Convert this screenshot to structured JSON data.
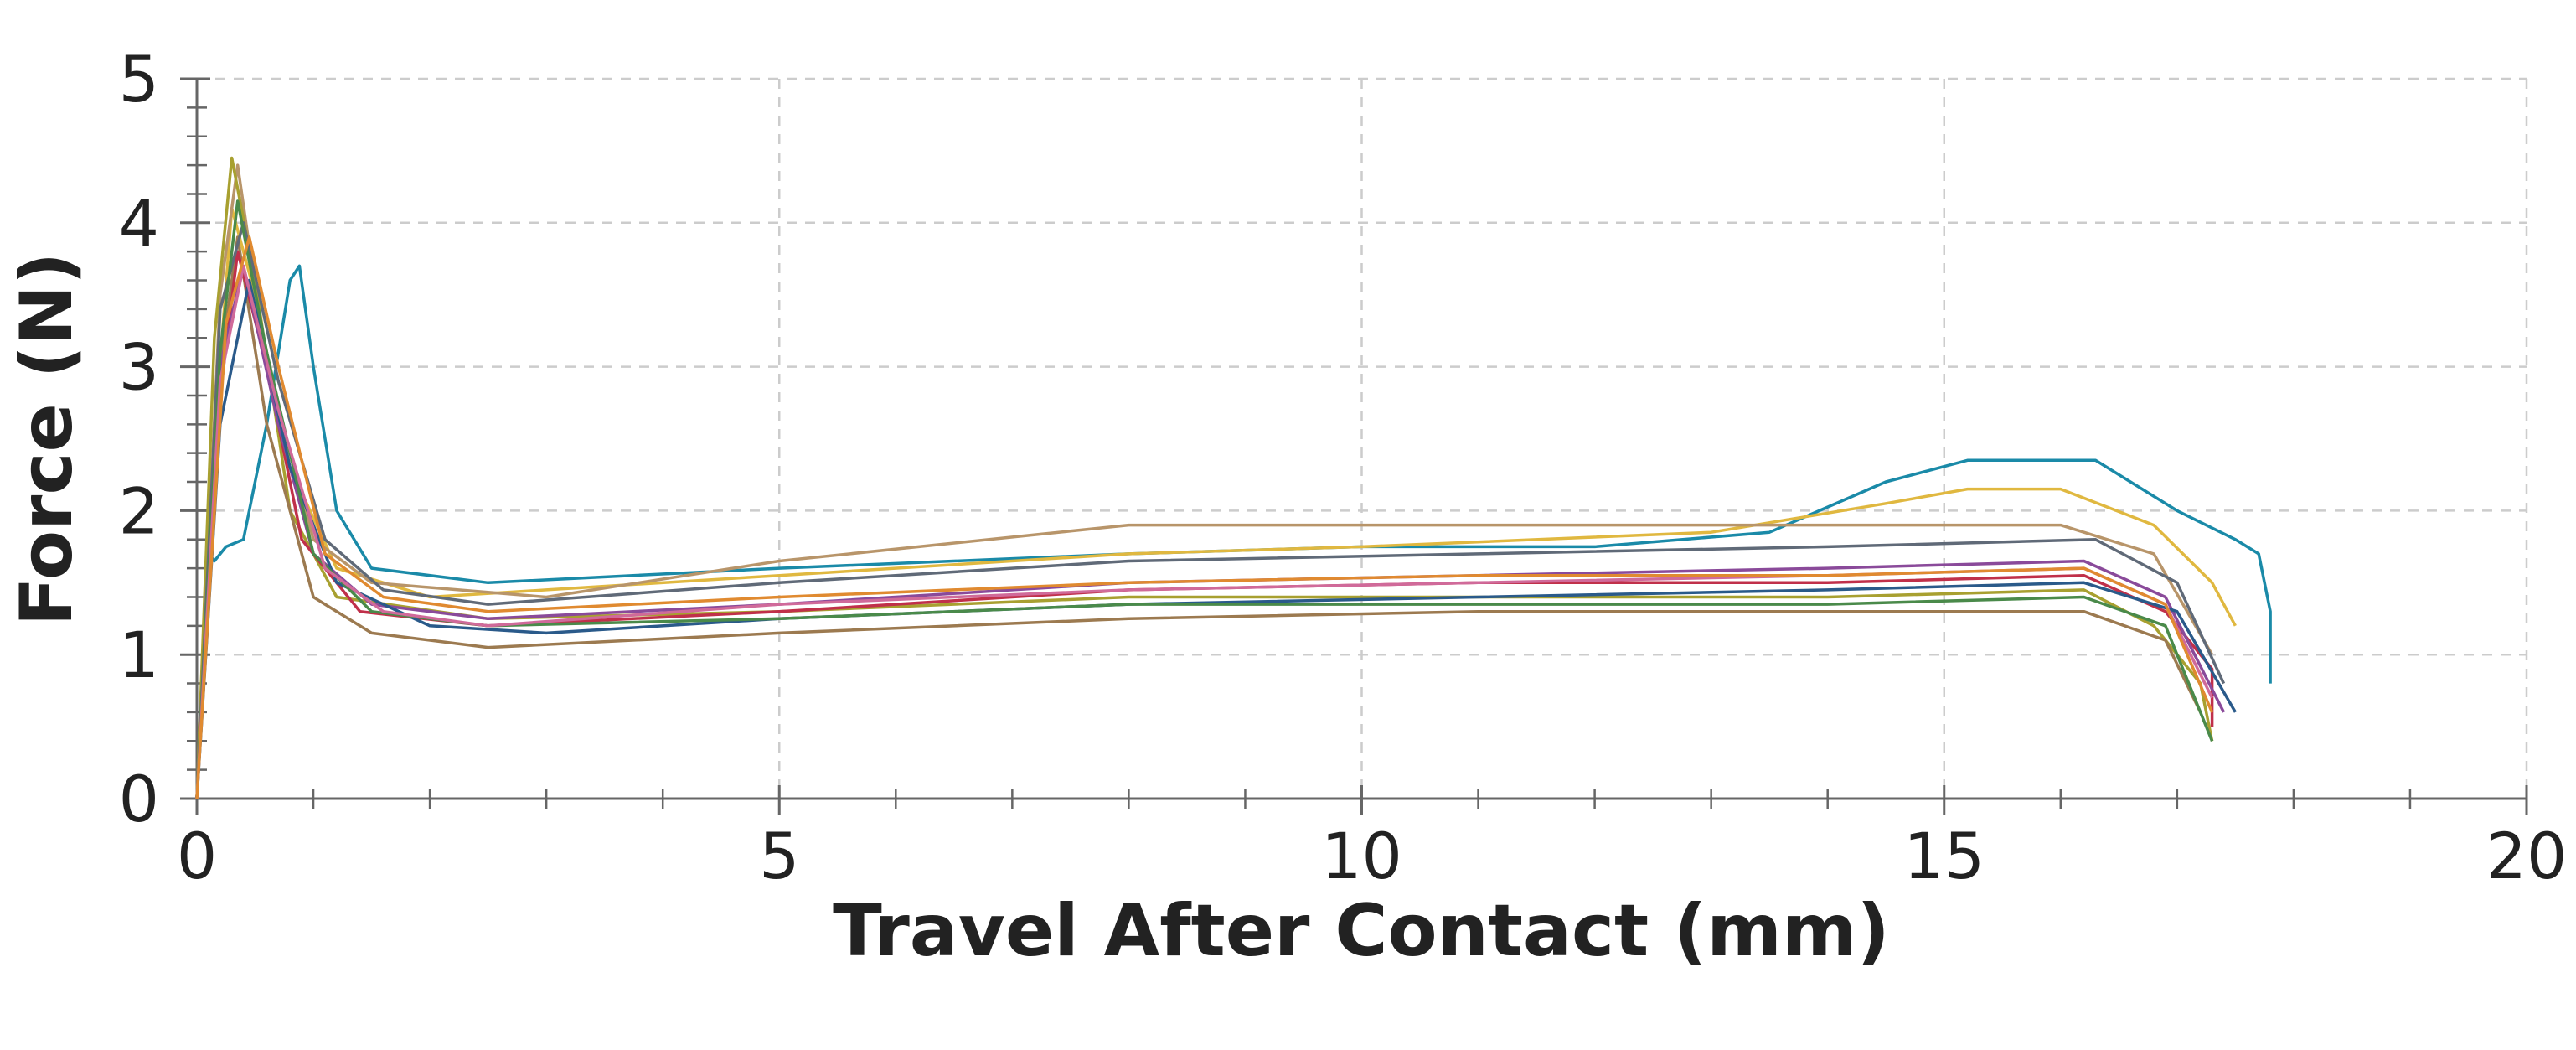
{
  "chart_data": {
    "type": "line",
    "xlabel": "Travel After Contact (mm)",
    "ylabel": "Force (N)",
    "xlim": [
      0,
      20
    ],
    "ylim": [
      0,
      5
    ],
    "xticks": [
      0,
      5,
      10,
      15,
      20
    ],
    "yticks": [
      0,
      1,
      2,
      3,
      4,
      5
    ],
    "xminorticks": [
      1,
      2,
      3,
      4,
      6,
      7,
      8,
      9,
      11,
      12,
      13,
      14,
      16,
      17,
      18,
      19
    ],
    "yminorticks": [
      0.2,
      0.4,
      0.6,
      0.8,
      1.2,
      1.4,
      1.6,
      1.8,
      2.2,
      2.4,
      2.6,
      2.8,
      3.2,
      3.4,
      3.6,
      3.8,
      4.2,
      4.4,
      4.6,
      4.8
    ],
    "grid": true,
    "series": [
      {
        "color": "#1a8aa8",
        "x": [
          0,
          0.1,
          0.15,
          0.25,
          0.4,
          0.6,
          0.8,
          0.88,
          1.0,
          1.2,
          1.5,
          2.5,
          5,
          8,
          10,
          12,
          13.5,
          14.5,
          15.2,
          16.3,
          17,
          17.5,
          17.7,
          17.8,
          17.8
        ],
        "values": [
          0,
          1.7,
          1.65,
          1.75,
          1.8,
          2.6,
          3.6,
          3.7,
          3.0,
          2.0,
          1.6,
          1.5,
          1.6,
          1.7,
          1.75,
          1.75,
          1.85,
          2.2,
          2.35,
          2.35,
          2.0,
          1.8,
          1.7,
          1.3,
          0.8
        ]
      },
      {
        "color": "#e0b840",
        "x": [
          0,
          0.15,
          0.3,
          0.5,
          0.8,
          1.2,
          2,
          3,
          5,
          8,
          10,
          13,
          14.5,
          15.2,
          16,
          16.8,
          17.3,
          17.5
        ],
        "values": [
          0,
          2.5,
          4.1,
          3.5,
          2.3,
          1.6,
          1.4,
          1.45,
          1.55,
          1.7,
          1.75,
          1.85,
          2.05,
          2.15,
          2.15,
          1.9,
          1.5,
          1.2
        ]
      },
      {
        "color": "#b8956a",
        "x": [
          0,
          0.2,
          0.35,
          0.6,
          1,
          1.5,
          3,
          5,
          8,
          10,
          13,
          16,
          16.8,
          17.3
        ],
        "values": [
          0,
          3.5,
          4.4,
          3.0,
          1.8,
          1.5,
          1.4,
          1.65,
          1.9,
          1.9,
          1.9,
          1.9,
          1.7,
          1.0
        ]
      },
      {
        "color": "#a8a030",
        "x": [
          0,
          0.15,
          0.3,
          0.5,
          0.8,
          1.2,
          2.5,
          5,
          8,
          11,
          14,
          16.2,
          16.8,
          17.2,
          17.3
        ],
        "values": [
          0,
          3.2,
          4.45,
          3.6,
          2.0,
          1.4,
          1.25,
          1.3,
          1.4,
          1.4,
          1.4,
          1.45,
          1.2,
          0.8,
          0.4
        ]
      },
      {
        "color": "#9c7a50",
        "x": [
          0,
          0.2,
          0.35,
          0.6,
          1,
          1.5,
          2.5,
          5,
          8,
          11,
          14,
          16.2,
          16.9,
          17.2
        ],
        "values": [
          0,
          3.0,
          3.9,
          2.6,
          1.4,
          1.15,
          1.05,
          1.15,
          1.25,
          1.3,
          1.3,
          1.3,
          1.1,
          0.6
        ]
      },
      {
        "color": "#c0304a",
        "x": [
          0,
          0.2,
          0.35,
          0.6,
          0.9,
          1.4,
          2.5,
          5,
          8,
          11,
          14,
          16.2,
          16.9,
          17.3,
          17.3
        ],
        "values": [
          0,
          2.8,
          3.8,
          3.0,
          1.8,
          1.3,
          1.2,
          1.3,
          1.45,
          1.5,
          1.5,
          1.55,
          1.3,
          0.9,
          0.5
        ]
      },
      {
        "color": "#8a4a9a",
        "x": [
          0,
          0.2,
          0.4,
          0.7,
          1,
          1.5,
          2.5,
          5,
          8,
          11,
          14,
          16.2,
          16.9,
          17.4
        ],
        "values": [
          0,
          3.0,
          3.7,
          2.6,
          1.7,
          1.35,
          1.25,
          1.35,
          1.5,
          1.55,
          1.6,
          1.65,
          1.4,
          0.6
        ]
      },
      {
        "color": "#606a78",
        "x": [
          0,
          0.2,
          0.4,
          0.7,
          1.1,
          1.6,
          2.5,
          5,
          8,
          11,
          14,
          16.3,
          17,
          17.4
        ],
        "values": [
          0,
          3.4,
          4.0,
          2.9,
          1.8,
          1.45,
          1.35,
          1.5,
          1.65,
          1.7,
          1.75,
          1.8,
          1.5,
          0.8
        ]
      },
      {
        "color": "#2a5a8a",
        "x": [
          0,
          0.2,
          0.45,
          0.8,
          1.2,
          2,
          3,
          5,
          8,
          11,
          14,
          16.2,
          17,
          17.5
        ],
        "values": [
          0,
          2.6,
          3.6,
          2.3,
          1.5,
          1.2,
          1.15,
          1.25,
          1.35,
          1.4,
          1.45,
          1.5,
          1.3,
          0.6
        ]
      },
      {
        "color": "#4a8a4a",
        "x": [
          0,
          0.2,
          0.35,
          0.6,
          1,
          1.5,
          2.5,
          5,
          8,
          11,
          14,
          16.2,
          16.9,
          17.3
        ],
        "values": [
          0,
          3.1,
          4.15,
          3.1,
          1.7,
          1.3,
          1.2,
          1.25,
          1.35,
          1.35,
          1.35,
          1.4,
          1.2,
          0.4
        ]
      },
      {
        "color": "#d06a9a",
        "x": [
          0,
          0.2,
          0.4,
          0.7,
          1.1,
          1.6,
          2.5,
          5,
          8,
          11,
          14,
          16.2,
          16.9,
          17.3
        ],
        "values": [
          0,
          2.9,
          3.7,
          2.7,
          1.6,
          1.3,
          1.2,
          1.35,
          1.45,
          1.5,
          1.55,
          1.6,
          1.35,
          0.7
        ]
      },
      {
        "color": "#e08a30",
        "x": [
          0,
          0.25,
          0.45,
          0.7,
          1.1,
          1.6,
          2.5,
          5,
          8,
          11,
          14,
          16.2,
          16.9,
          17.3
        ],
        "values": [
          0,
          3.3,
          3.9,
          3.0,
          1.7,
          1.4,
          1.3,
          1.4,
          1.5,
          1.55,
          1.55,
          1.6,
          1.35,
          0.6
        ]
      }
    ]
  }
}
